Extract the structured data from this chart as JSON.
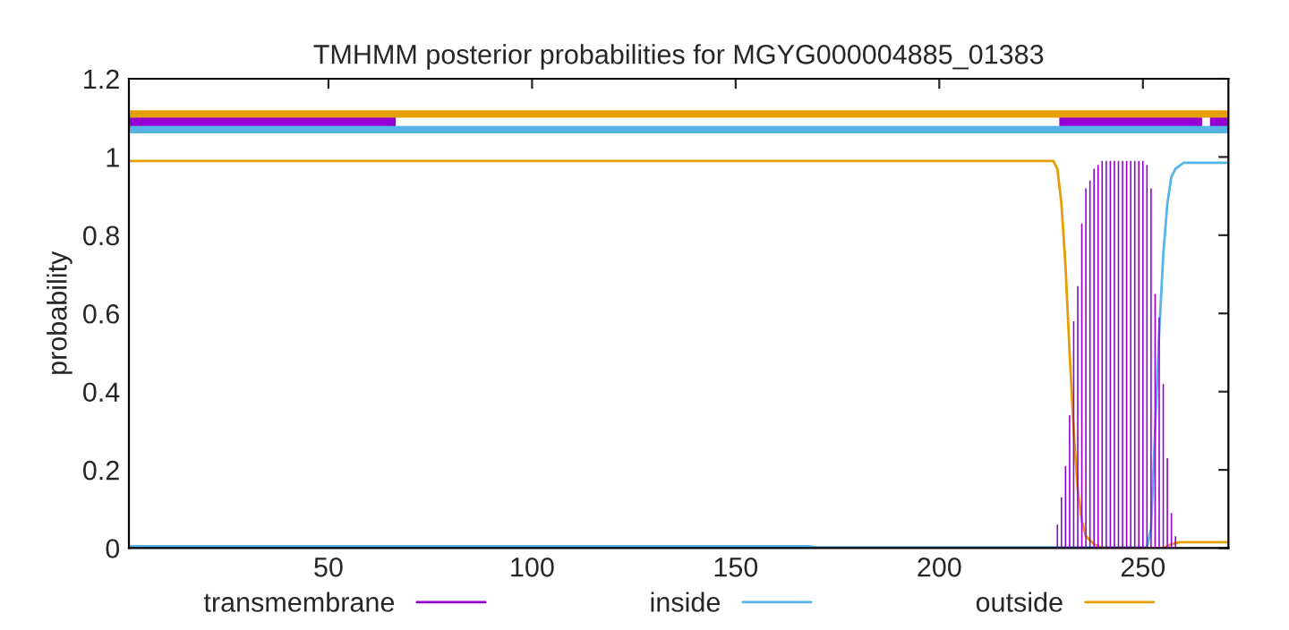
{
  "chart_data": {
    "type": "line",
    "title": "TMHMM posterior probabilities for MGYG000004885_01383",
    "ylabel": "probability",
    "xlim": [
      1,
      271
    ],
    "ylim": [
      0,
      1.2
    ],
    "xticks": [
      50,
      100,
      150,
      200,
      250
    ],
    "yticks": [
      0,
      0.2,
      0.4,
      0.6,
      0.8,
      1,
      1.2
    ],
    "grid": false,
    "legend": "bottom",
    "series": [
      {
        "name": "transmembrane",
        "type": "bar",
        "color": "#9400d3",
        "x": [
          229,
          230,
          231,
          232,
          233,
          234,
          235,
          236,
          237,
          238,
          239,
          240,
          241,
          242,
          243,
          244,
          245,
          246,
          247,
          248,
          249,
          250,
          251,
          252,
          253,
          254,
          255,
          256,
          257,
          258
        ],
        "values": [
          0.06,
          0.13,
          0.21,
          0.34,
          0.58,
          0.67,
          0.83,
          0.92,
          0.94,
          0.97,
          0.98,
          0.99,
          0.99,
          0.99,
          0.99,
          0.99,
          0.99,
          0.99,
          0.99,
          0.99,
          0.99,
          0.99,
          0.98,
          0.92,
          0.65,
          0.59,
          0.42,
          0.23,
          0.09,
          0.03
        ]
      },
      {
        "name": "inside",
        "color": "#56b4e9",
        "x": [
          1,
          168,
          170,
          251,
          252,
          253,
          254,
          255,
          256,
          257,
          258,
          260,
          271
        ],
        "values": [
          0.005,
          0.005,
          0.002,
          0.002,
          0.05,
          0.3,
          0.55,
          0.75,
          0.88,
          0.95,
          0.97,
          0.985,
          0.985
        ]
      },
      {
        "name": "outside",
        "color": "#e69f00",
        "x": [
          1,
          228,
          229,
          230,
          231,
          232,
          233,
          234,
          235,
          236,
          238,
          240,
          255,
          257,
          259,
          271
        ],
        "values": [
          0.99,
          0.99,
          0.97,
          0.88,
          0.72,
          0.5,
          0.3,
          0.15,
          0.07,
          0.03,
          0.01,
          0.0,
          0.0,
          0.01,
          0.015,
          0.015
        ]
      },
      {
        "color": "#9400d3",
        "x": [
          1,
          65,
          66,
          231,
          263,
          264,
          268,
          271
        ],
        "values": [
          1.09,
          1.09,
          null,
          1.09,
          1.09,
          null,
          1.09,
          1.09
        ]
      }
    ],
    "ref_lines": [
      {
        "axis": "y",
        "value": 1.11,
        "color": "#e69f00"
      },
      {
        "axis": "y",
        "value": 1.07,
        "color": "#56b4e9"
      }
    ]
  }
}
